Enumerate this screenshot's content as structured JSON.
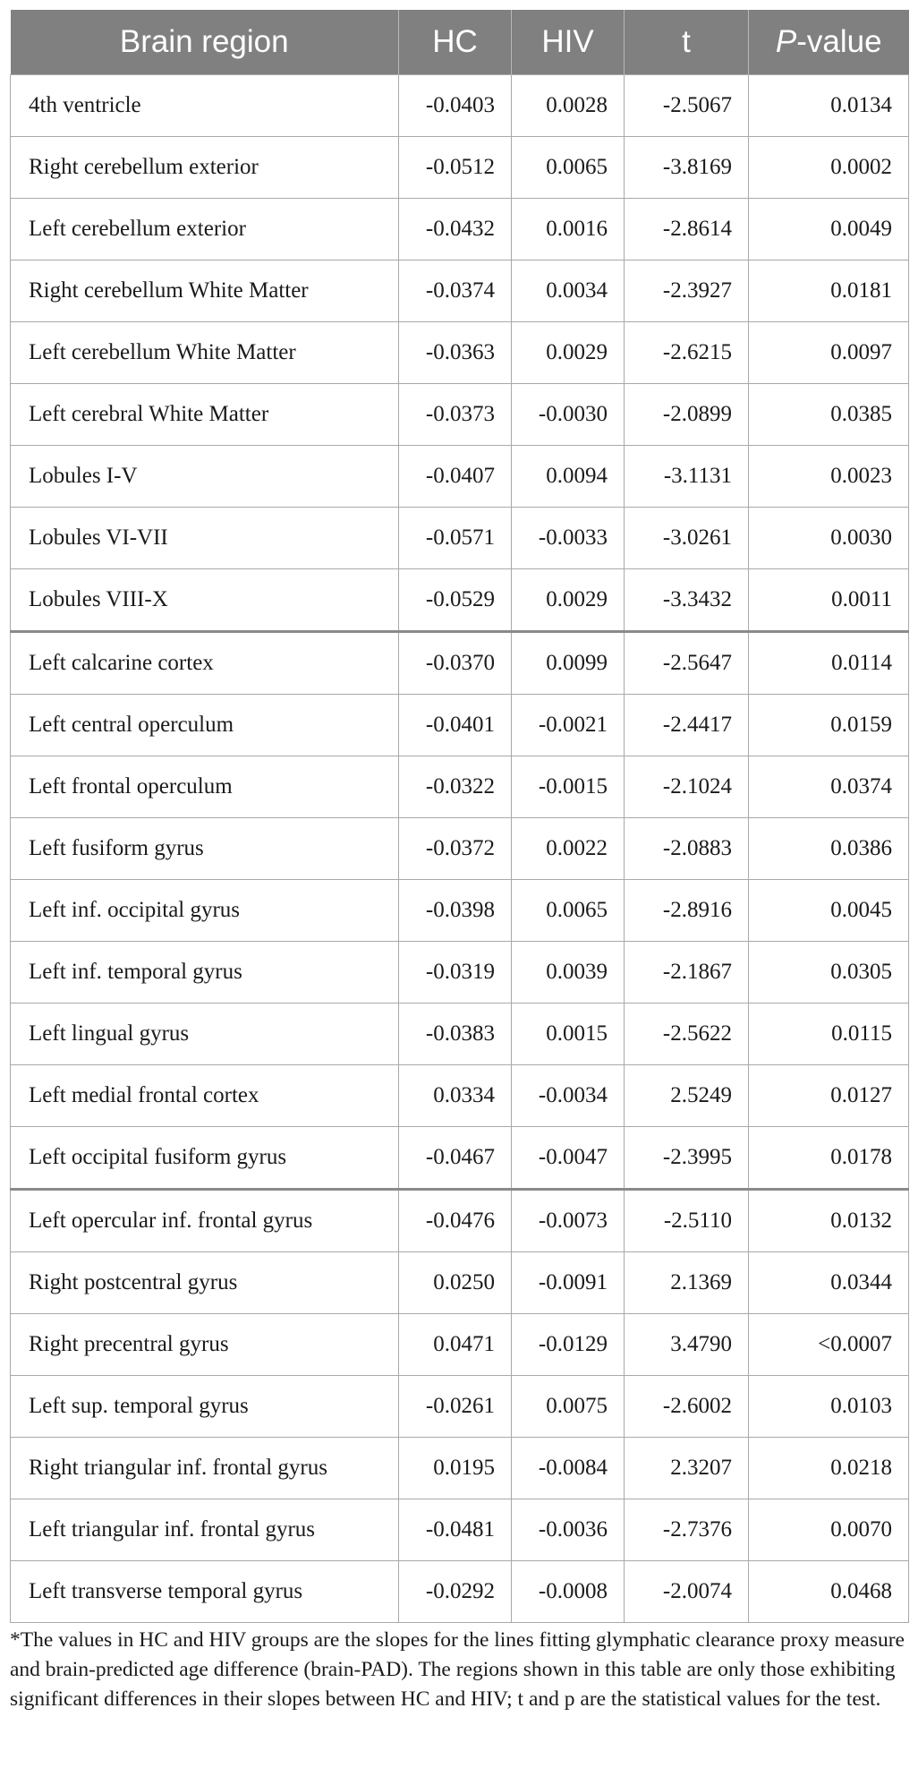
{
  "table": {
    "headers": {
      "region": "Brain region",
      "hc": "HC",
      "hiv": "HIV",
      "t": "t",
      "p_italic": "P",
      "p_rest": "-value"
    },
    "rows": [
      {
        "region": "4th ventricle",
        "hc": "-0.0403",
        "hiv": "0.0028",
        "t": "-2.5067",
        "p": "0.0134"
      },
      {
        "region": "Right cerebellum exterior",
        "hc": "-0.0512",
        "hiv": "0.0065",
        "t": "-3.8169",
        "p": "0.0002"
      },
      {
        "region": "Left cerebellum exterior",
        "hc": "-0.0432",
        "hiv": "0.0016",
        "t": "-2.8614",
        "p": "0.0049"
      },
      {
        "region": "Right cerebellum White Matter",
        "hc": "-0.0374",
        "hiv": "0.0034",
        "t": "-2.3927",
        "p": "0.0181"
      },
      {
        "region": "Left cerebellum White Matter",
        "hc": "-0.0363",
        "hiv": "0.0029",
        "t": "-2.6215",
        "p": "0.0097"
      },
      {
        "region": "Left cerebral White Matter",
        "hc": "-0.0373",
        "hiv": "-0.0030",
        "t": "-2.0899",
        "p": "0.0385"
      },
      {
        "region": "Lobules I-V",
        "hc": "-0.0407",
        "hiv": "0.0094",
        "t": "-3.1131",
        "p": "0.0023"
      },
      {
        "region": "Lobules VI-VII",
        "hc": "-0.0571",
        "hiv": "-0.0033",
        "t": "-3.0261",
        "p": "0.0030"
      },
      {
        "region": "Lobules VIII-X",
        "hc": "-0.0529",
        "hiv": "0.0029",
        "t": "-3.3432",
        "p": "0.0011"
      },
      {
        "region": "Left calcarine cortex",
        "hc": "-0.0370",
        "hiv": "0.0099",
        "t": "-2.5647",
        "p": "0.0114"
      },
      {
        "region": "Left central operculum",
        "hc": "-0.0401",
        "hiv": "-0.0021",
        "t": "-2.4417",
        "p": "0.0159"
      },
      {
        "region": "Left frontal operculum",
        "hc": "-0.0322",
        "hiv": "-0.0015",
        "t": "-2.1024",
        "p": "0.0374"
      },
      {
        "region": "Left fusiform gyrus",
        "hc": "-0.0372",
        "hiv": "0.0022",
        "t": "-2.0883",
        "p": "0.0386"
      },
      {
        "region": "Left inf. occipital gyrus",
        "hc": "-0.0398",
        "hiv": "0.0065",
        "t": "-2.8916",
        "p": "0.0045"
      },
      {
        "region": "Left inf. temporal gyrus",
        "hc": "-0.0319",
        "hiv": "0.0039",
        "t": "-2.1867",
        "p": "0.0305"
      },
      {
        "region": "Left lingual gyrus",
        "hc": "-0.0383",
        "hiv": "0.0015",
        "t": "-2.5622",
        "p": "0.0115"
      },
      {
        "region": "Left medial frontal cortex",
        "hc": "0.0334",
        "hiv": "-0.0034",
        "t": "2.5249",
        "p": "0.0127"
      },
      {
        "region": "Left occipital fusiform gyrus",
        "hc": "-0.0467",
        "hiv": "-0.0047",
        "t": "-2.3995",
        "p": "0.0178"
      },
      {
        "region": "Left opercular inf. frontal gyrus",
        "hc": "-0.0476",
        "hiv": "-0.0073",
        "t": "-2.5110",
        "p": "0.0132"
      },
      {
        "region": "Right postcentral gyrus",
        "hc": "0.0250",
        "hiv": "-0.0091",
        "t": "2.1369",
        "p": "0.0344"
      },
      {
        "region": "Right precentral gyrus",
        "hc": "0.0471",
        "hiv": "-0.0129",
        "t": "3.4790",
        "p": "<0.0007"
      },
      {
        "region": "Left sup. temporal gyrus",
        "hc": "-0.0261",
        "hiv": "0.0075",
        "t": "-2.6002",
        "p": "0.0103"
      },
      {
        "region": "Right triangular inf. frontal gyrus",
        "hc": "0.0195",
        "hiv": "-0.0084",
        "t": "2.3207",
        "p": "0.0218"
      },
      {
        "region": "Left triangular inf. frontal gyrus",
        "hc": "-0.0481",
        "hiv": "-0.0036",
        "t": "-2.7376",
        "p": "0.0070"
      },
      {
        "region": "Left transverse temporal gyrus",
        "hc": "-0.0292",
        "hiv": "-0.0008",
        "t": "-2.0074",
        "p": "0.0468"
      }
    ]
  },
  "footnote": "*The values in HC and HIV groups are the slopes for the lines fitting glymphatic clearance proxy measure and brain-predicted age difference (brain-PAD). The regions shown in this table are only those exhibiting significant differences in their slopes between HC and HIV; t and p are the statistical values for the test."
}
